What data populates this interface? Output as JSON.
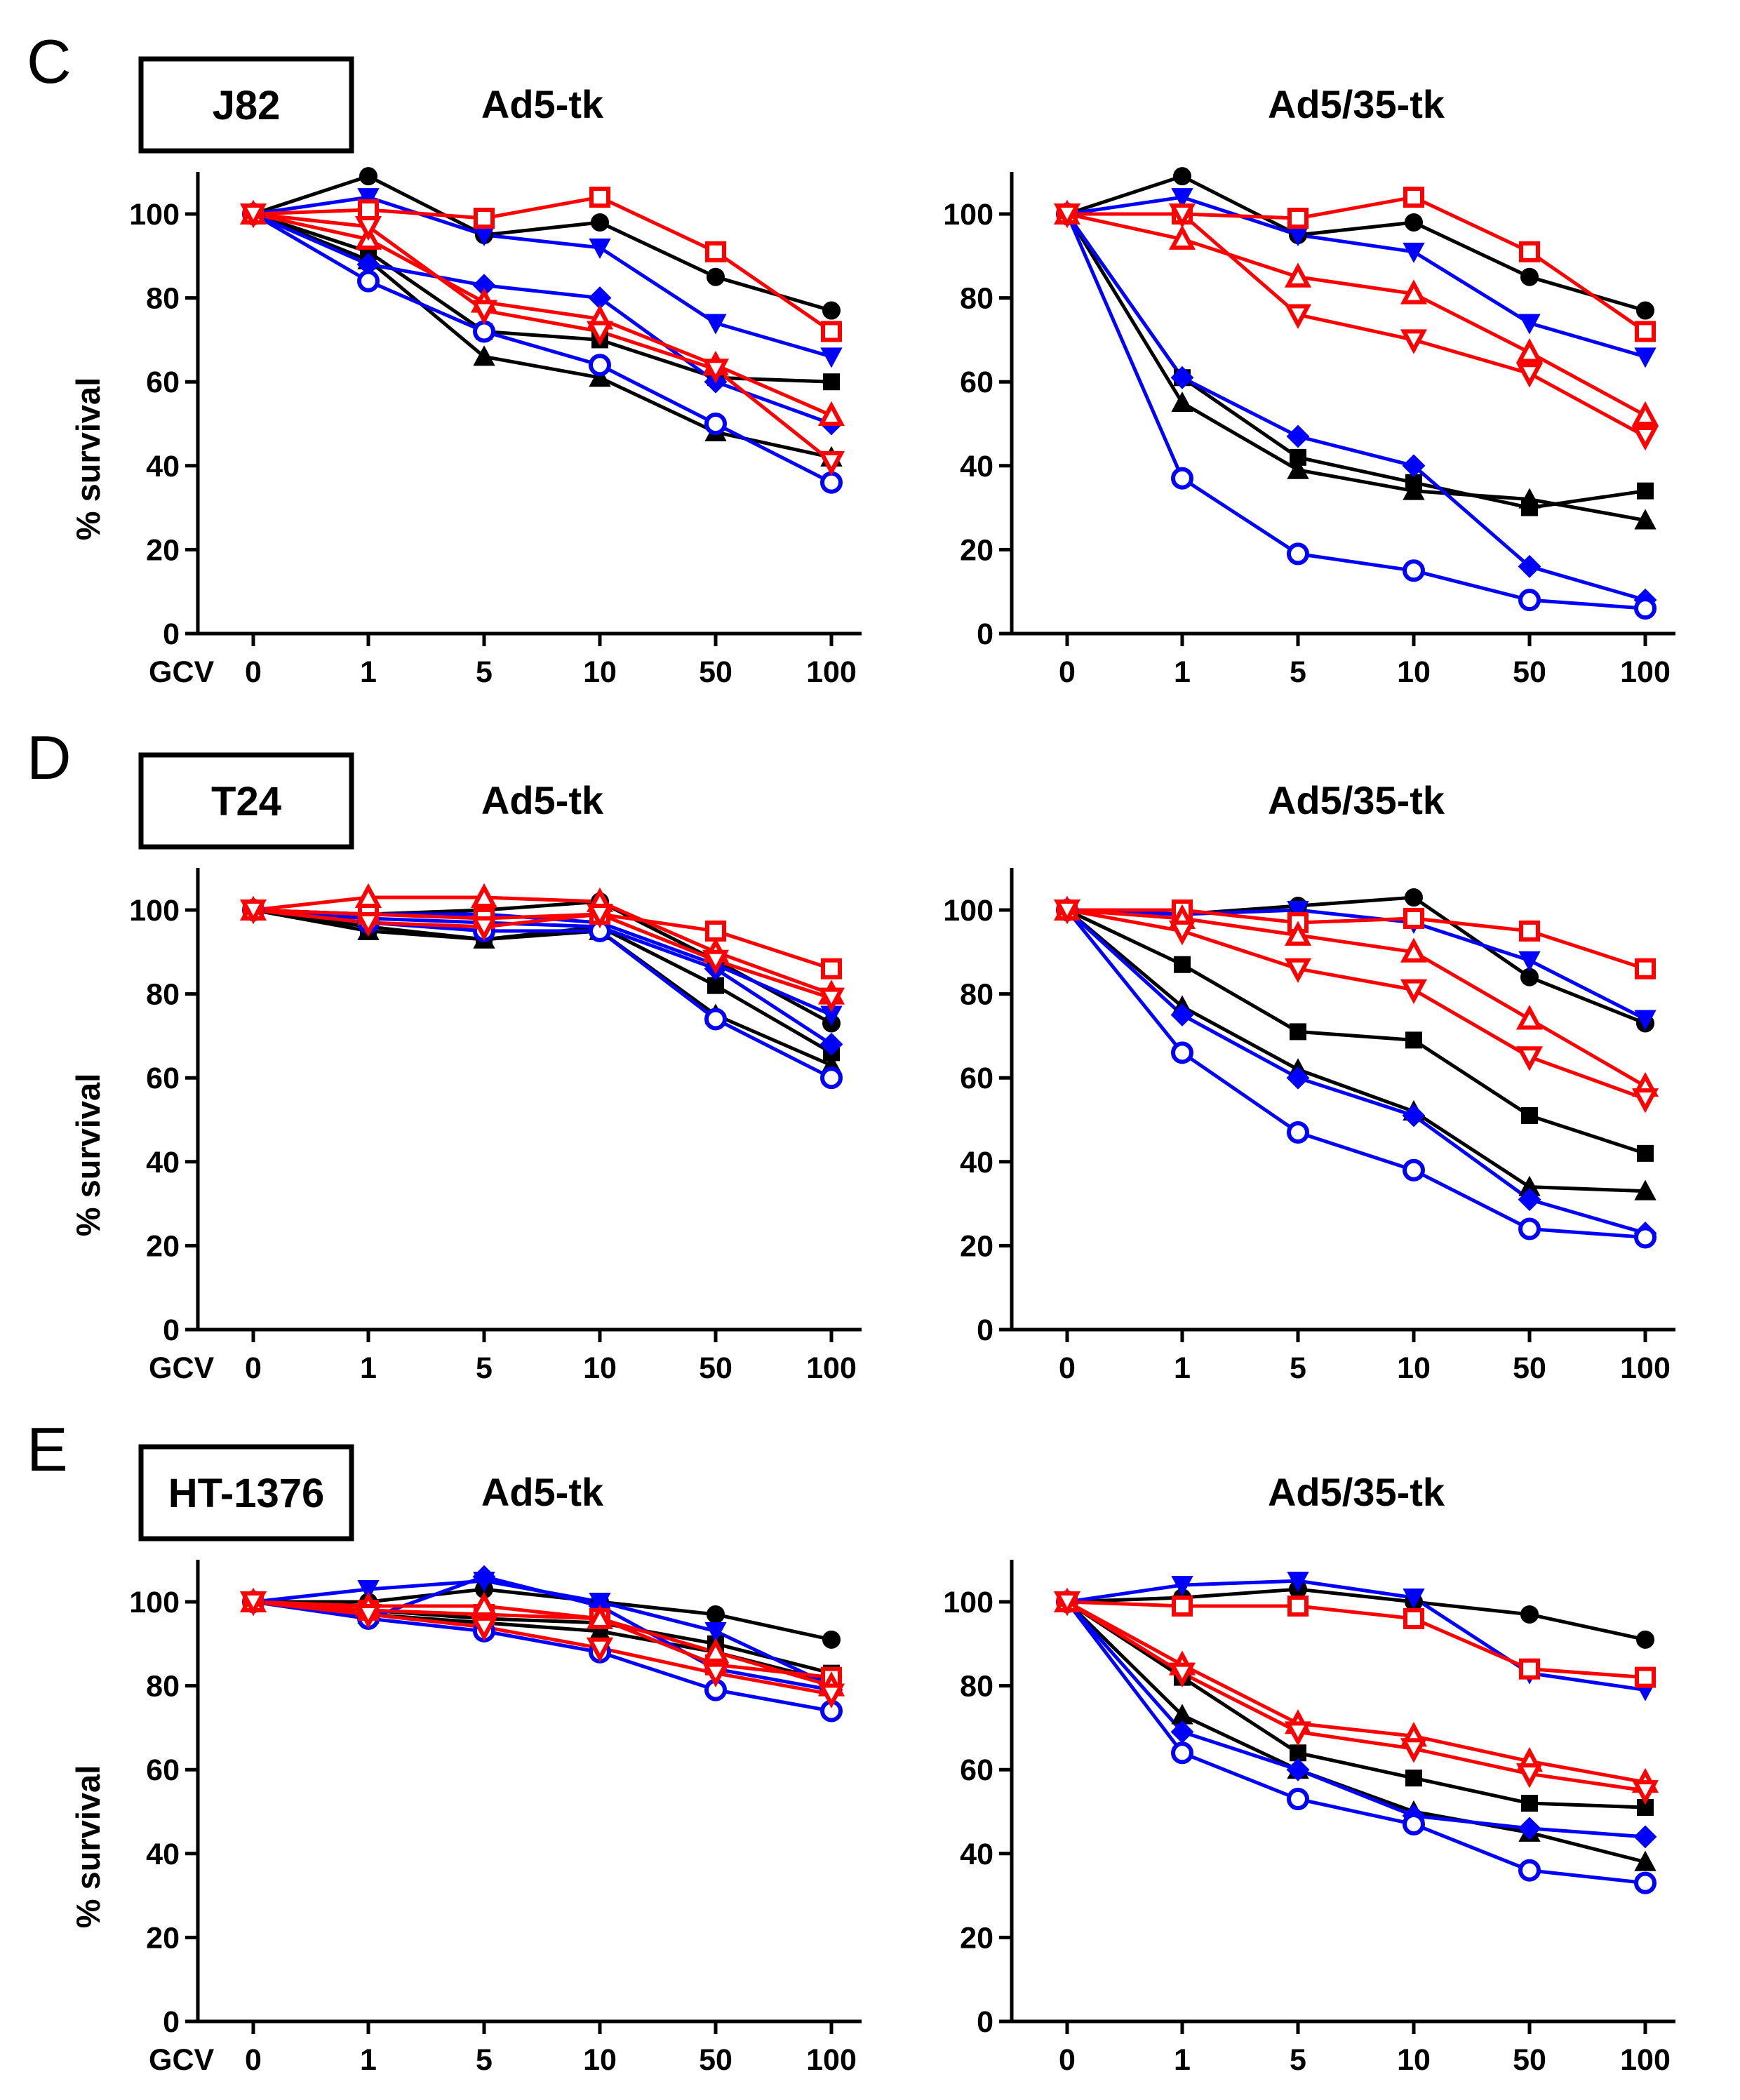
{
  "chart_data": [
    {
      "id": "C-ad5",
      "type": "line",
      "panel_letter": "C",
      "cell_line": "J82",
      "title": "Ad5-tk",
      "xlabel": "GCV",
      "ylabel": "% survival",
      "categories": [
        "0",
        "1",
        "5",
        "10",
        "50",
        "100"
      ],
      "ylim": [
        0,
        110
      ],
      "yticks": [
        0,
        20,
        40,
        60,
        80,
        100
      ],
      "series": [
        {
          "color": "#000000",
          "marker": "circle",
          "filled": true,
          "values": [
            100,
            109,
            95,
            98,
            85,
            77
          ]
        },
        {
          "color": "#000000",
          "marker": "square",
          "filled": true,
          "values": [
            100,
            91,
            72,
            70,
            61,
            60
          ]
        },
        {
          "color": "#000000",
          "marker": "triangle-up",
          "filled": true,
          "values": [
            100,
            89,
            66,
            61,
            48,
            42
          ]
        },
        {
          "color": "#0000ff",
          "marker": "triangle-down",
          "filled": true,
          "values": [
            100,
            104,
            95,
            92,
            74,
            66
          ]
        },
        {
          "color": "#0000ff",
          "marker": "diamond",
          "filled": true,
          "values": [
            100,
            88,
            83,
            80,
            60,
            50
          ]
        },
        {
          "color": "#0000ff",
          "marker": "circle",
          "filled": false,
          "values": [
            100,
            84,
            72,
            64,
            50,
            36
          ]
        },
        {
          "color": "#ff0000",
          "marker": "square",
          "filled": false,
          "values": [
            100,
            101,
            99,
            104,
            91,
            72
          ]
        },
        {
          "color": "#ff0000",
          "marker": "triangle-up",
          "filled": false,
          "values": [
            100,
            94,
            79,
            75,
            64,
            52
          ]
        },
        {
          "color": "#ff0000",
          "marker": "triangle-down",
          "filled": false,
          "values": [
            100,
            97,
            77,
            72,
            63,
            41
          ]
        }
      ]
    },
    {
      "id": "C-ad535",
      "type": "line",
      "panel_letter": "",
      "cell_line": "",
      "title": "Ad5/35-tk",
      "xlabel": "",
      "ylabel": "",
      "categories": [
        "0",
        "1",
        "5",
        "10",
        "50",
        "100"
      ],
      "ylim": [
        0,
        110
      ],
      "yticks": [
        0,
        20,
        40,
        60,
        80,
        100
      ],
      "series": [
        {
          "color": "#000000",
          "marker": "circle",
          "filled": true,
          "values": [
            100,
            109,
            95,
            98,
            85,
            77
          ]
        },
        {
          "color": "#000000",
          "marker": "square",
          "filled": true,
          "values": [
            100,
            61,
            42,
            36,
            30,
            34
          ]
        },
        {
          "color": "#000000",
          "marker": "triangle-up",
          "filled": true,
          "values": [
            100,
            55,
            39,
            34,
            32,
            27
          ]
        },
        {
          "color": "#0000ff",
          "marker": "triangle-down",
          "filled": true,
          "values": [
            100,
            104,
            95,
            91,
            74,
            66
          ]
        },
        {
          "color": "#0000ff",
          "marker": "diamond",
          "filled": true,
          "values": [
            100,
            61,
            47,
            40,
            16,
            8
          ]
        },
        {
          "color": "#0000ff",
          "marker": "circle",
          "filled": false,
          "values": [
            100,
            37,
            19,
            15,
            8,
            6
          ]
        },
        {
          "color": "#ff0000",
          "marker": "square",
          "filled": false,
          "values": [
            100,
            100,
            99,
            104,
            91,
            72
          ]
        },
        {
          "color": "#ff0000",
          "marker": "triangle-up",
          "filled": false,
          "values": [
            100,
            94,
            85,
            81,
            67,
            52
          ]
        },
        {
          "color": "#ff0000",
          "marker": "triangle-down",
          "filled": false,
          "values": [
            100,
            100,
            76,
            70,
            62,
            47
          ]
        }
      ]
    },
    {
      "id": "D-ad5",
      "type": "line",
      "panel_letter": "D",
      "cell_line": "T24",
      "title": "Ad5-tk",
      "xlabel": "GCV",
      "ylabel": "% survival",
      "categories": [
        "0",
        "1",
        "5",
        "10",
        "50",
        "100"
      ],
      "ylim": [
        0,
        110
      ],
      "yticks": [
        0,
        20,
        40,
        60,
        80,
        100
      ],
      "series": [
        {
          "color": "#000000",
          "marker": "circle",
          "filled": true,
          "values": [
            100,
            99,
            100,
            102,
            88,
            73
          ]
        },
        {
          "color": "#000000",
          "marker": "square",
          "filled": true,
          "values": [
            100,
            96,
            93,
            96,
            82,
            66
          ]
        },
        {
          "color": "#000000",
          "marker": "triangle-up",
          "filled": true,
          "values": [
            100,
            95,
            93,
            95,
            75,
            63
          ]
        },
        {
          "color": "#0000ff",
          "marker": "triangle-down",
          "filled": true,
          "values": [
            100,
            99,
            99,
            97,
            87,
            75
          ]
        },
        {
          "color": "#0000ff",
          "marker": "diamond",
          "filled": true,
          "values": [
            100,
            98,
            97,
            96,
            86,
            68
          ]
        },
        {
          "color": "#0000ff",
          "marker": "circle",
          "filled": false,
          "values": [
            100,
            97,
            95,
            95,
            74,
            60
          ]
        },
        {
          "color": "#ff0000",
          "marker": "square",
          "filled": false,
          "values": [
            100,
            99,
            98,
            99,
            95,
            86
          ]
        },
        {
          "color": "#ff0000",
          "marker": "triangle-up",
          "filled": false,
          "values": [
            100,
            103,
            103,
            102,
            90,
            80
          ]
        },
        {
          "color": "#ff0000",
          "marker": "triangle-down",
          "filled": false,
          "values": [
            100,
            97,
            96,
            99,
            88,
            79
          ]
        }
      ]
    },
    {
      "id": "D-ad535",
      "type": "line",
      "panel_letter": "",
      "cell_line": "",
      "title": "Ad5/35-tk",
      "xlabel": "",
      "ylabel": "",
      "categories": [
        "0",
        "1",
        "5",
        "10",
        "50",
        "100"
      ],
      "ylim": [
        0,
        110
      ],
      "yticks": [
        0,
        20,
        40,
        60,
        80,
        100
      ],
      "series": [
        {
          "color": "#000000",
          "marker": "circle",
          "filled": true,
          "values": [
            100,
            99,
            101,
            103,
            84,
            73
          ]
        },
        {
          "color": "#000000",
          "marker": "square",
          "filled": true,
          "values": [
            100,
            87,
            71,
            69,
            51,
            42
          ]
        },
        {
          "color": "#000000",
          "marker": "triangle-up",
          "filled": true,
          "values": [
            100,
            77,
            62,
            52,
            34,
            33
          ]
        },
        {
          "color": "#0000ff",
          "marker": "triangle-down",
          "filled": true,
          "values": [
            100,
            99,
            100,
            97,
            88,
            74
          ]
        },
        {
          "color": "#0000ff",
          "marker": "diamond",
          "filled": true,
          "values": [
            100,
            75,
            60,
            51,
            31,
            23
          ]
        },
        {
          "color": "#0000ff",
          "marker": "circle",
          "filled": false,
          "values": [
            100,
            66,
            47,
            38,
            24,
            22
          ]
        },
        {
          "color": "#ff0000",
          "marker": "square",
          "filled": false,
          "values": [
            100,
            100,
            97,
            98,
            95,
            86
          ]
        },
        {
          "color": "#ff0000",
          "marker": "triangle-up",
          "filled": false,
          "values": [
            100,
            98,
            94,
            90,
            74,
            58
          ]
        },
        {
          "color": "#ff0000",
          "marker": "triangle-down",
          "filled": false,
          "values": [
            100,
            95,
            86,
            81,
            65,
            55
          ]
        }
      ]
    },
    {
      "id": "E-ad5",
      "type": "line",
      "panel_letter": "E",
      "cell_line": "HT-1376",
      "title": "Ad5-tk",
      "xlabel": "GCV",
      "ylabel": "% survival",
      "categories": [
        "0",
        "1",
        "5",
        "10",
        "50",
        "100"
      ],
      "ylim": [
        0,
        110
      ],
      "yticks": [
        0,
        20,
        40,
        60,
        80,
        100
      ],
      "series": [
        {
          "color": "#000000",
          "marker": "circle",
          "filled": true,
          "values": [
            100,
            100,
            103,
            100,
            97,
            91
          ]
        },
        {
          "color": "#000000",
          "marker": "square",
          "filled": true,
          "values": [
            100,
            98,
            96,
            95,
            90,
            83
          ]
        },
        {
          "color": "#000000",
          "marker": "triangle-up",
          "filled": true,
          "values": [
            100,
            97,
            95,
            93,
            88,
            81
          ]
        },
        {
          "color": "#0000ff",
          "marker": "triangle-down",
          "filled": true,
          "values": [
            100,
            103,
            105,
            100,
            93,
            80
          ]
        },
        {
          "color": "#0000ff",
          "marker": "diamond",
          "filled": true,
          "values": [
            100,
            96,
            106,
            99,
            84,
            79
          ]
        },
        {
          "color": "#0000ff",
          "marker": "circle",
          "filled": false,
          "values": [
            100,
            96,
            93,
            88,
            79,
            74
          ]
        },
        {
          "color": "#ff0000",
          "marker": "square",
          "filled": false,
          "values": [
            100,
            98,
            97,
            96,
            85,
            82
          ]
        },
        {
          "color": "#ff0000",
          "marker": "triangle-up",
          "filled": false,
          "values": [
            100,
            99,
            99,
            96,
            88,
            80
          ]
        },
        {
          "color": "#ff0000",
          "marker": "triangle-down",
          "filled": false,
          "values": [
            100,
            97,
            94,
            89,
            83,
            78
          ]
        }
      ]
    },
    {
      "id": "E-ad535",
      "type": "line",
      "panel_letter": "",
      "cell_line": "",
      "title": "Ad5/35-tk",
      "xlabel": "",
      "ylabel": "",
      "categories": [
        "0",
        "1",
        "5",
        "10",
        "50",
        "100"
      ],
      "ylim": [
        0,
        110
      ],
      "yticks": [
        0,
        20,
        40,
        60,
        80,
        100
      ],
      "series": [
        {
          "color": "#000000",
          "marker": "circle",
          "filled": true,
          "values": [
            100,
            101,
            103,
            100,
            97,
            91
          ]
        },
        {
          "color": "#000000",
          "marker": "square",
          "filled": true,
          "values": [
            100,
            82,
            64,
            58,
            52,
            51
          ]
        },
        {
          "color": "#000000",
          "marker": "triangle-up",
          "filled": true,
          "values": [
            100,
            73,
            60,
            50,
            45,
            38
          ]
        },
        {
          "color": "#0000ff",
          "marker": "triangle-down",
          "filled": true,
          "values": [
            100,
            104,
            105,
            101,
            83,
            79
          ]
        },
        {
          "color": "#0000ff",
          "marker": "diamond",
          "filled": true,
          "values": [
            100,
            69,
            60,
            49,
            46,
            44
          ]
        },
        {
          "color": "#0000ff",
          "marker": "circle",
          "filled": false,
          "values": [
            100,
            64,
            53,
            47,
            36,
            33
          ]
        },
        {
          "color": "#ff0000",
          "marker": "square",
          "filled": false,
          "values": [
            100,
            99,
            99,
            96,
            84,
            82
          ]
        },
        {
          "color": "#ff0000",
          "marker": "triangle-up",
          "filled": false,
          "values": [
            100,
            85,
            71,
            68,
            62,
            57
          ]
        },
        {
          "color": "#ff0000",
          "marker": "triangle-down",
          "filled": false,
          "values": [
            100,
            83,
            69,
            65,
            59,
            55
          ]
        }
      ]
    }
  ]
}
